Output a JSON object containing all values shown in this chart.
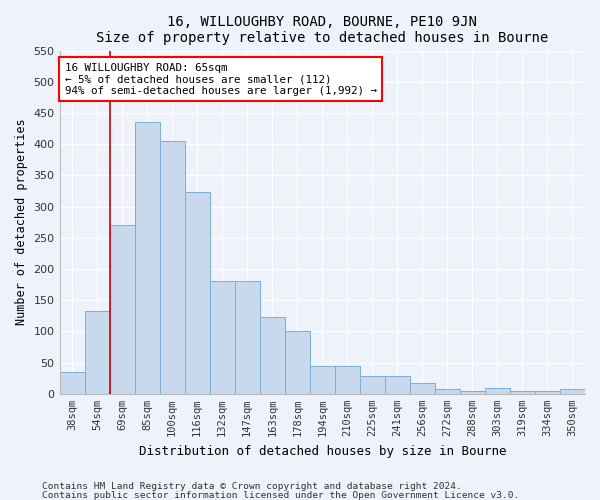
{
  "title": "16, WILLOUGHBY ROAD, BOURNE, PE10 9JN",
  "subtitle": "Size of property relative to detached houses in Bourne",
  "xlabel": "Distribution of detached houses by size in Bourne",
  "ylabel": "Number of detached properties",
  "bar_color": "#c8d9ee",
  "bar_edge_color": "#7aafd4",
  "plot_bg_color": "#eef2fa",
  "fig_bg_color": "#eef2fa",
  "categories": [
    "38sqm",
    "54sqm",
    "69sqm",
    "85sqm",
    "100sqm",
    "116sqm",
    "132sqm",
    "147sqm",
    "163sqm",
    "178sqm",
    "194sqm",
    "210sqm",
    "225sqm",
    "241sqm",
    "256sqm",
    "272sqm",
    "288sqm",
    "303sqm",
    "319sqm",
    "334sqm",
    "350sqm"
  ],
  "values": [
    35,
    132,
    270,
    435,
    405,
    323,
    181,
    181,
    123,
    101,
    45,
    45,
    28,
    28,
    18,
    7,
    5,
    9,
    5,
    4,
    7
  ],
  "ylim": [
    0,
    550
  ],
  "yticks": [
    0,
    50,
    100,
    150,
    200,
    250,
    300,
    350,
    400,
    450,
    500,
    550
  ],
  "property_line_x": 1.5,
  "annotation_title": "16 WILLOUGHBY ROAD: 65sqm",
  "annotation_line1": "← 5% of detached houses are smaller (112)",
  "annotation_line2": "94% of semi-detached houses are larger (1,992) →",
  "footnote1": "Contains HM Land Registry data © Crown copyright and database right 2024.",
  "footnote2": "Contains public sector information licensed under the Open Government Licence v3.0."
}
